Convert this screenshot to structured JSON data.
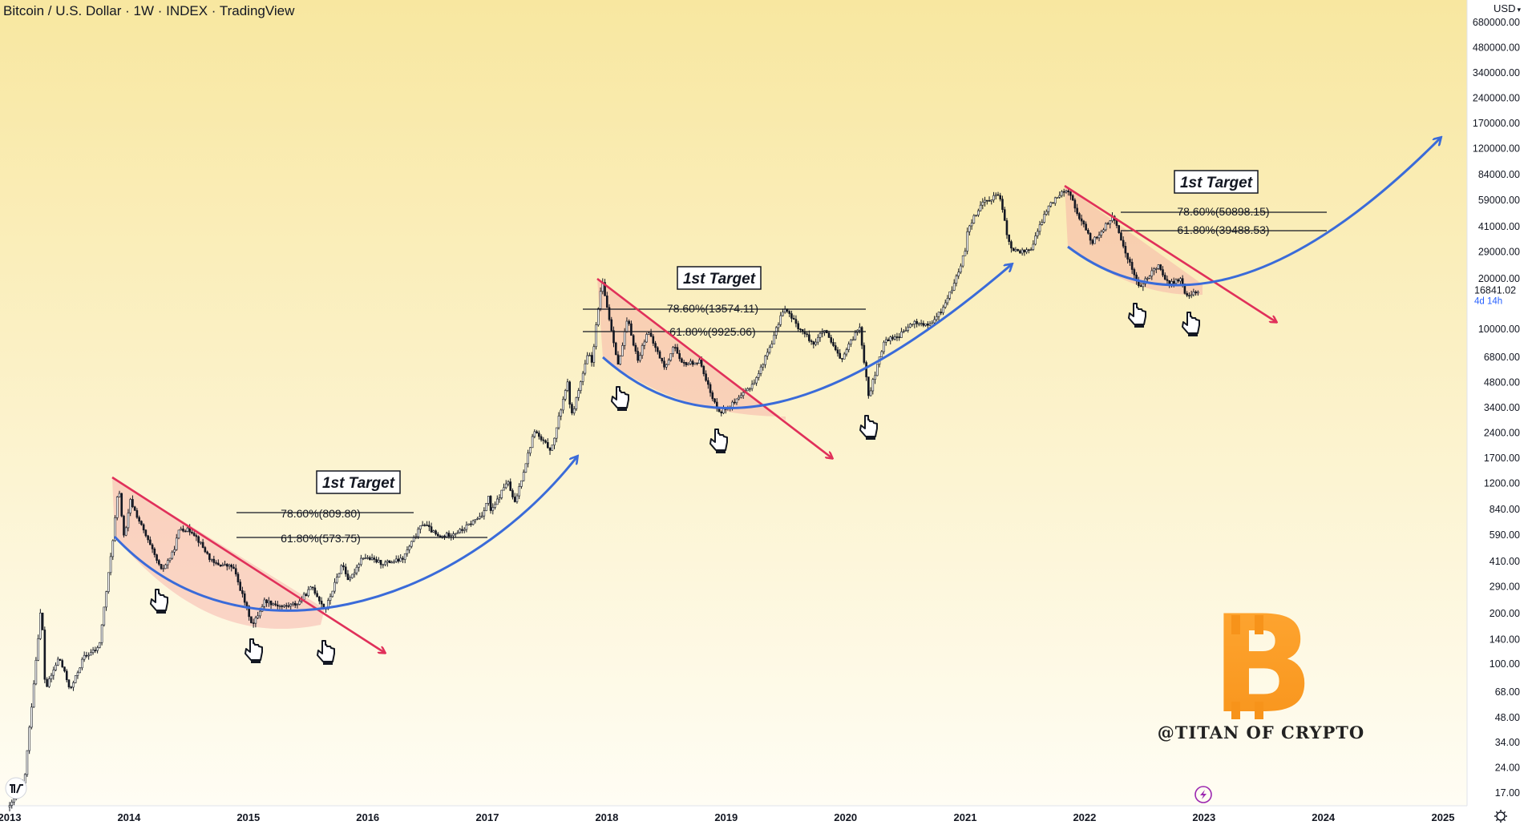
{
  "header": {
    "title": "Bitcoin / U.S. Dollar · 1W · INDEX · TradingView",
    "currency": "USD"
  },
  "price_axis": {
    "ticks": [
      "680000.00",
      "480000.00",
      "340000.00",
      "240000.00",
      "170000.00",
      "120000.00",
      "84000.00",
      "59000.00",
      "41000.00",
      "29000.00",
      "20000.00",
      "10000.00",
      "6800.00",
      "4800.00",
      "3400.00",
      "2400.00",
      "1700.00",
      "1200.00",
      "840.00",
      "590.00",
      "410.00",
      "290.00",
      "200.00",
      "140.00",
      "100.00",
      "68.00",
      "48.00",
      "34.00",
      "24.00",
      "17.00"
    ],
    "current_price": "16841.02",
    "countdown": "4d 14h"
  },
  "time_axis": {
    "ticks": [
      "2013",
      "2014",
      "2015",
      "2016",
      "2017",
      "2018",
      "2019",
      "2020",
      "2021",
      "2022",
      "2023",
      "2024",
      "2025"
    ]
  },
  "colors": {
    "background_top": "#f8e7a0",
    "background_bottom": "#fffdf4",
    "candle": "#131722",
    "downtrend": "#e0305a",
    "fill_zone": "#f6a9a4",
    "curve": "#3a6bd9",
    "logo": "#f7931a"
  },
  "annotations": {
    "target_label": "1st Target",
    "cycles": [
      {
        "fib_786": "78.60%(809.80)",
        "fib_618": "61.80%(573.75)"
      },
      {
        "fib_786": "78.60%(13574.11)",
        "fib_618": "61.80%(9925.06)"
      },
      {
        "fib_786": "78.60%(50898.15)",
        "fib_618": "61.80%(39488.53)"
      }
    ]
  },
  "watermark": {
    "text": "@TITAN OF CRYPTO"
  },
  "chart_data": {
    "type": "line",
    "title": "Bitcoin / U.S. Dollar · 1W · INDEX · TradingView",
    "xlabel": "",
    "ylabel": "",
    "y_scale": "log",
    "ylim": [
      14,
      800000
    ],
    "xlim": [
      "2013-01-01",
      "2025-06-01"
    ],
    "series": [
      {
        "x": [
          "2013-01-01",
          "2013-02-15",
          "2013-04-08",
          "2013-04-20",
          "2013-06-01",
          "2013-07-06",
          "2013-08-15",
          "2013-10-01",
          "2013-11-10",
          "2013-11-30",
          "2013-12-18",
          "2014-01-05",
          "2014-02-25",
          "2014-04-10",
          "2014-05-15",
          "2014-06-05",
          "2014-07-15",
          "2014-09-15",
          "2014-11-15",
          "2015-01-14",
          "2015-02-20",
          "2015-04-15",
          "2015-06-01",
          "2015-07-15",
          "2015-08-24",
          "2015-10-15",
          "2015-11-05",
          "2015-12-15",
          "2016-02-15",
          "2016-04-15",
          "2016-06-18",
          "2016-08-05",
          "2016-10-15",
          "2016-12-15",
          "2017-01-05",
          "2017-01-12",
          "2017-03-03",
          "2017-03-25",
          "2017-05-25",
          "2017-06-12",
          "2017-07-16",
          "2017-09-02",
          "2017-09-15",
          "2017-11-08",
          "2017-11-12",
          "2017-12-17",
          "2018-02-06",
          "2018-03-05",
          "2018-04-06",
          "2018-05-05",
          "2018-06-29",
          "2018-07-25",
          "2018-08-15",
          "2018-10-15",
          "2018-11-20",
          "2018-12-15",
          "2019-02-08",
          "2019-04-02",
          "2019-05-25",
          "2019-06-26",
          "2019-08-15",
          "2019-09-26",
          "2019-10-27",
          "2019-12-18",
          "2020-02-13",
          "2020-03-12",
          "2020-04-30",
          "2020-06-15",
          "2020-07-28",
          "2020-09-15",
          "2020-10-21",
          "2020-11-30",
          "2020-12-31",
          "2021-01-08",
          "2021-02-21",
          "2021-04-14",
          "2021-05-19",
          "2021-06-22",
          "2021-07-20",
          "2021-09-07",
          "2021-10-20",
          "2021-11-10",
          "2021-12-15",
          "2022-01-24",
          "2022-03-28",
          "2022-05-12",
          "2022-06-18",
          "2022-08-14",
          "2022-09-15",
          "2022-10-20",
          "2022-11-09",
          "2022-11-25",
          "2022-12-20"
        ],
        "values": [
          14,
          20,
          230,
          70,
          110,
          70,
          110,
          125,
          500,
          1150,
          550,
          950,
          560,
          360,
          460,
          650,
          620,
          400,
          380,
          170,
          240,
          220,
          230,
          290,
          210,
          400,
          310,
          440,
          400,
          420,
          700,
          570,
          630,
          780,
          1000,
          800,
          1250,
          900,
          2500,
          2200,
          1900,
          4900,
          3000,
          7500,
          5500,
          19600,
          6000,
          11500,
          6500,
          9800,
          5800,
          8200,
          6200,
          6400,
          3800,
          3200,
          3800,
          5000,
          8800,
          13500,
          10000,
          8200,
          9900,
          6500,
          10500,
          4000,
          8600,
          9200,
          11000,
          10500,
          13000,
          19000,
          29000,
          40000,
          57000,
          64000,
          30000,
          29000,
          30000,
          52000,
          66000,
          69000,
          47000,
          33000,
          47000,
          27000,
          17600,
          24500,
          18500,
          20000,
          15500,
          16400,
          16841
        ]
      }
    ]
  }
}
